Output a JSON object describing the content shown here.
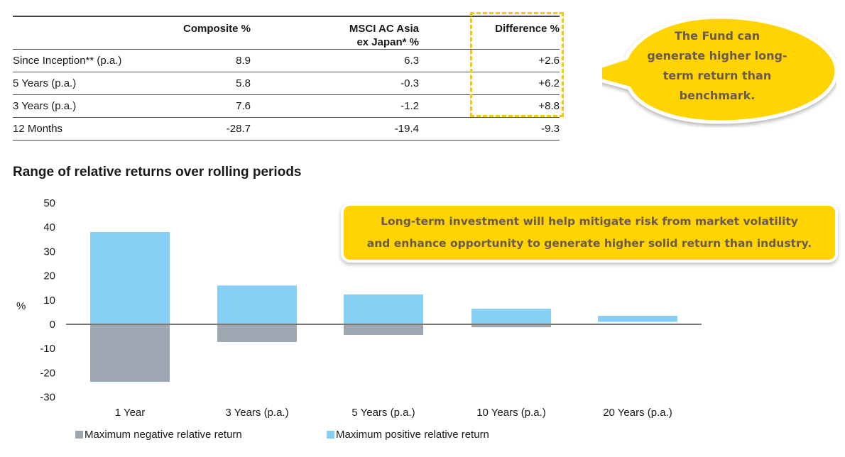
{
  "table": {
    "headers": [
      "",
      "Composite %",
      "MSCI AC Asia\nex Japan* %",
      "Difference %"
    ],
    "header_lines": {
      "msci_line1": "MSCI AC Asia",
      "msci_line2": "ex Japan* %"
    },
    "rows": [
      {
        "period": "Since Inception** (p.a.)",
        "composite": "8.9",
        "msci": "6.3",
        "difference": "+2.6"
      },
      {
        "period": "5 Years (p.a.)",
        "composite": "5.8",
        "msci": "-0.3",
        "difference": "+6.2"
      },
      {
        "period": "3 Years (p.a.)",
        "composite": "7.6",
        "msci": "-1.2",
        "difference": "+8.8"
      },
      {
        "period": "12 Months",
        "composite": "-28.7",
        "msci": "-19.4",
        "difference": "-9.3"
      }
    ],
    "highlight_color": "#F5C800"
  },
  "bubble": {
    "lines": [
      "The Fund can",
      "generate higher long-",
      "term return than",
      "benchmark."
    ],
    "color": "#FFD400",
    "text_color": "#6b5a52"
  },
  "callout": {
    "lines": [
      "Long-term investment will help mitigate risk from market volatility",
      "and enhance opportunity to generate higher solid return than industry."
    ]
  },
  "chart_data": {
    "type": "bar",
    "title": "Range of relative returns over rolling periods",
    "xlabel": "",
    "ylabel": "%",
    "ylim": [
      -30,
      50
    ],
    "yticks": [
      50,
      40,
      30,
      20,
      10,
      0,
      -10,
      -20,
      -30
    ],
    "categories": [
      "1 Year",
      "3 Years (p.a.)",
      "5 Years (p.a.)",
      "10 Years (p.a.)",
      "20 Years (p.a.)"
    ],
    "series": [
      {
        "name": "Maximum negative relative return",
        "color": "#9EA7B1",
        "values": [
          -23.7,
          -7.3,
          -4.4,
          -1.2,
          1.0
        ]
      },
      {
        "name": "Maximum positive relative return",
        "color": "#86CEF3",
        "values": [
          38.0,
          16.0,
          12.3,
          6.4,
          3.5
        ]
      }
    ],
    "grid": false,
    "legend": "bottom-left"
  }
}
